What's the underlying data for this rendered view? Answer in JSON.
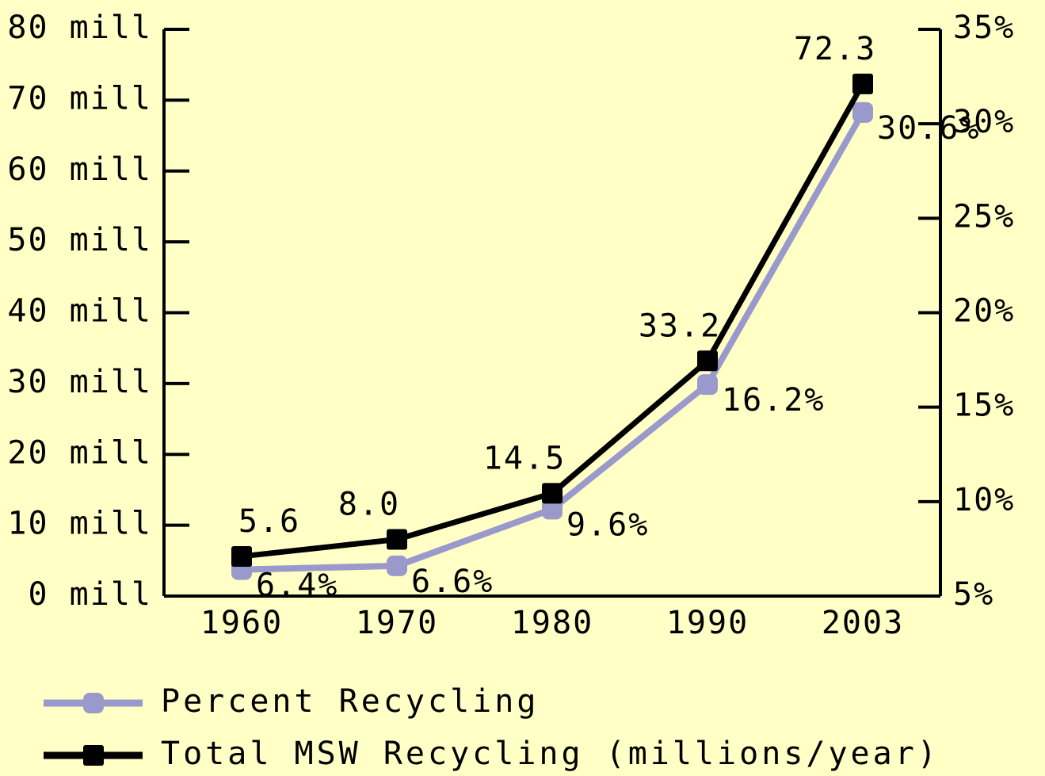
{
  "chart_data": {
    "type": "line",
    "categories": [
      "1960",
      "1970",
      "1980",
      "1990",
      "2003"
    ],
    "series": [
      {
        "name": "Percent Recycling",
        "color": "#9999cc",
        "axis": "y2",
        "values": [
          6.4,
          6.6,
          9.6,
          16.2,
          30.6
        ],
        "value_labels": [
          "6.4%",
          "6.6%",
          "9.6%",
          "16.2%",
          "30.6%"
        ]
      },
      {
        "name": "Total MSW Recycling (millions/year)",
        "color": "#000000",
        "values": [
          5.6,
          8.0,
          14.5,
          33.2,
          72.3
        ],
        "value_labels": [
          "5.6",
          "8.0",
          "14.5",
          "33.2",
          "72.3"
        ]
      }
    ],
    "ylim": [
      0,
      80
    ],
    "yticks": [
      {
        "value": 0,
        "label": "0 mill"
      },
      {
        "value": 10,
        "label": "10 mill"
      },
      {
        "value": 20,
        "label": "20 mill"
      },
      {
        "value": 30,
        "label": "30 mill"
      },
      {
        "value": 40,
        "label": "40 mill"
      },
      {
        "value": 50,
        "label": "50 mill"
      },
      {
        "value": 60,
        "label": "60 mill"
      },
      {
        "value": 70,
        "label": "70 mill"
      },
      {
        "value": 80,
        "label": "80 mill"
      }
    ],
    "y2lim": [
      5,
      35
    ],
    "y2ticks": [
      {
        "value": 5,
        "label": "5%"
      },
      {
        "value": 10,
        "label": "10%"
      },
      {
        "value": 15,
        "label": "15%"
      },
      {
        "value": 20,
        "label": "20%"
      },
      {
        "value": 25,
        "label": "25%"
      },
      {
        "value": 30,
        "label": "30%"
      },
      {
        "value": 35,
        "label": "35%"
      }
    ],
    "legend": "bottom-left"
  }
}
